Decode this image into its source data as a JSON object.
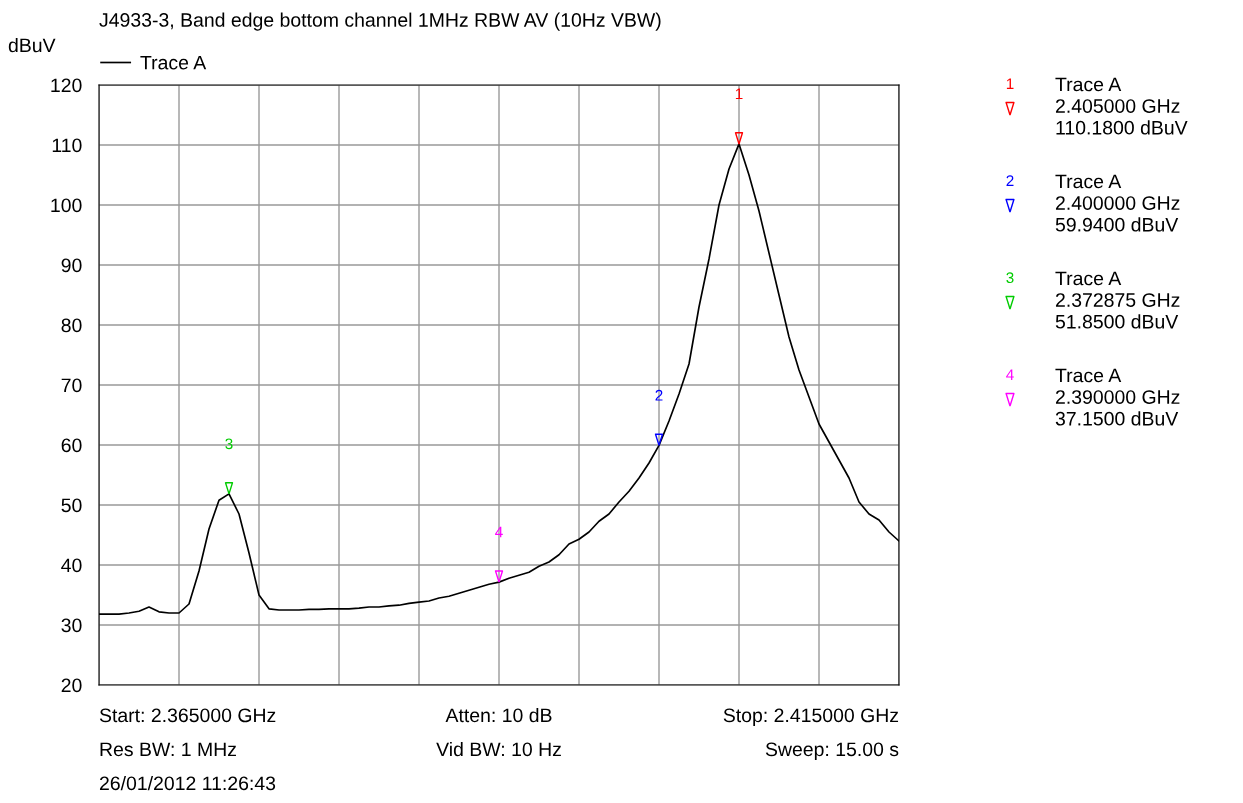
{
  "chart_data": {
    "type": "line",
    "title": "J4933-3, Band edge bottom channel 1MHz RBW AV (10Hz VBW)",
    "ylabel": "dBuV",
    "legend": "top left",
    "grid": true,
    "categories": [
      null,
      null,
      null,
      null,
      null,
      null,
      null,
      null,
      null,
      null,
      null,
      null,
      null,
      null,
      null,
      null,
      null,
      null,
      null,
      null,
      null,
      null,
      null,
      null,
      null,
      null,
      null,
      null,
      null,
      null,
      null,
      null,
      null,
      null,
      null,
      null,
      null,
      null,
      null,
      null,
      null,
      null,
      null,
      null,
      null,
      null,
      null,
      null,
      null,
      null,
      null,
      null,
      null,
      null,
      null,
      null,
      null,
      null,
      null,
      null,
      null,
      null,
      null,
      null,
      null,
      null,
      null,
      null,
      null,
      null,
      null,
      null,
      null,
      null,
      null,
      null,
      null,
      null,
      null,
      null,
      null
    ],
    "ylim": [
      20,
      120
    ],
    "yticks": [
      20,
      30,
      40,
      50,
      60,
      70,
      80,
      90,
      100,
      110,
      120
    ],
    "series": [
      {
        "name": "Trace A",
        "color": "#000000",
        "values": [
          31.8,
          31.8,
          31.8,
          32.0,
          32.3,
          33.0,
          32.2,
          32.0,
          32.0,
          33.5,
          39,
          46,
          50.8,
          51.85,
          48.5,
          42,
          35,
          32.7,
          32.5,
          32.5,
          32.5,
          32.6,
          32.6,
          32.7,
          32.7,
          32.7,
          32.8,
          33.0,
          33.0,
          33.2,
          33.3,
          33.6,
          33.8,
          34.0,
          34.5,
          34.8,
          35.3,
          35.8,
          36.3,
          36.8,
          37.15,
          37.8,
          38.3,
          38.8,
          39.8,
          40.5,
          41.7,
          43.5,
          44.3,
          45.5,
          47.3,
          48.5,
          50.5,
          52.3,
          54.5,
          57,
          59.94,
          64,
          68.5,
          73.5,
          83,
          91,
          100,
          106,
          110.18,
          105,
          99,
          92,
          85,
          78,
          72.5,
          68,
          63.5,
          60.5,
          57.5,
          54.5,
          50.5,
          48.5,
          47.5,
          45.5,
          44
        ]
      }
    ],
    "colors": [
      "#ff0000",
      "#0000ff",
      "#00cc00",
      "#ff00ff"
    ],
    "annotations": [
      {
        "text": "1",
        "y": 110.18
      },
      {
        "text": "2",
        "y": 59.94
      },
      {
        "text": "3",
        "y": 51.85
      },
      {
        "text": "4",
        "y": 37.15
      },
      "1",
      "Trace A\n2.405000 GHz\n110.1800 dBuV",
      "2",
      "Trace A\n2.400000 GHz\n59.9400 dBuV",
      "3",
      "Trace A\n2.372875 GHz\n51.8500 dBuV",
      "4",
      "Trace A\n2.390000 GHz\n37.1500 dBuV",
      "Start: 2.365000 GHz",
      "Atten: 10 dB",
      "Stop: 2.415000 GHz",
      "Res BW: 1 MHz",
      "Vid BW: 10 Hz",
      "Sweep: 15.00 s",
      "26/01/2012 11:26:43"
    ]
  }
}
